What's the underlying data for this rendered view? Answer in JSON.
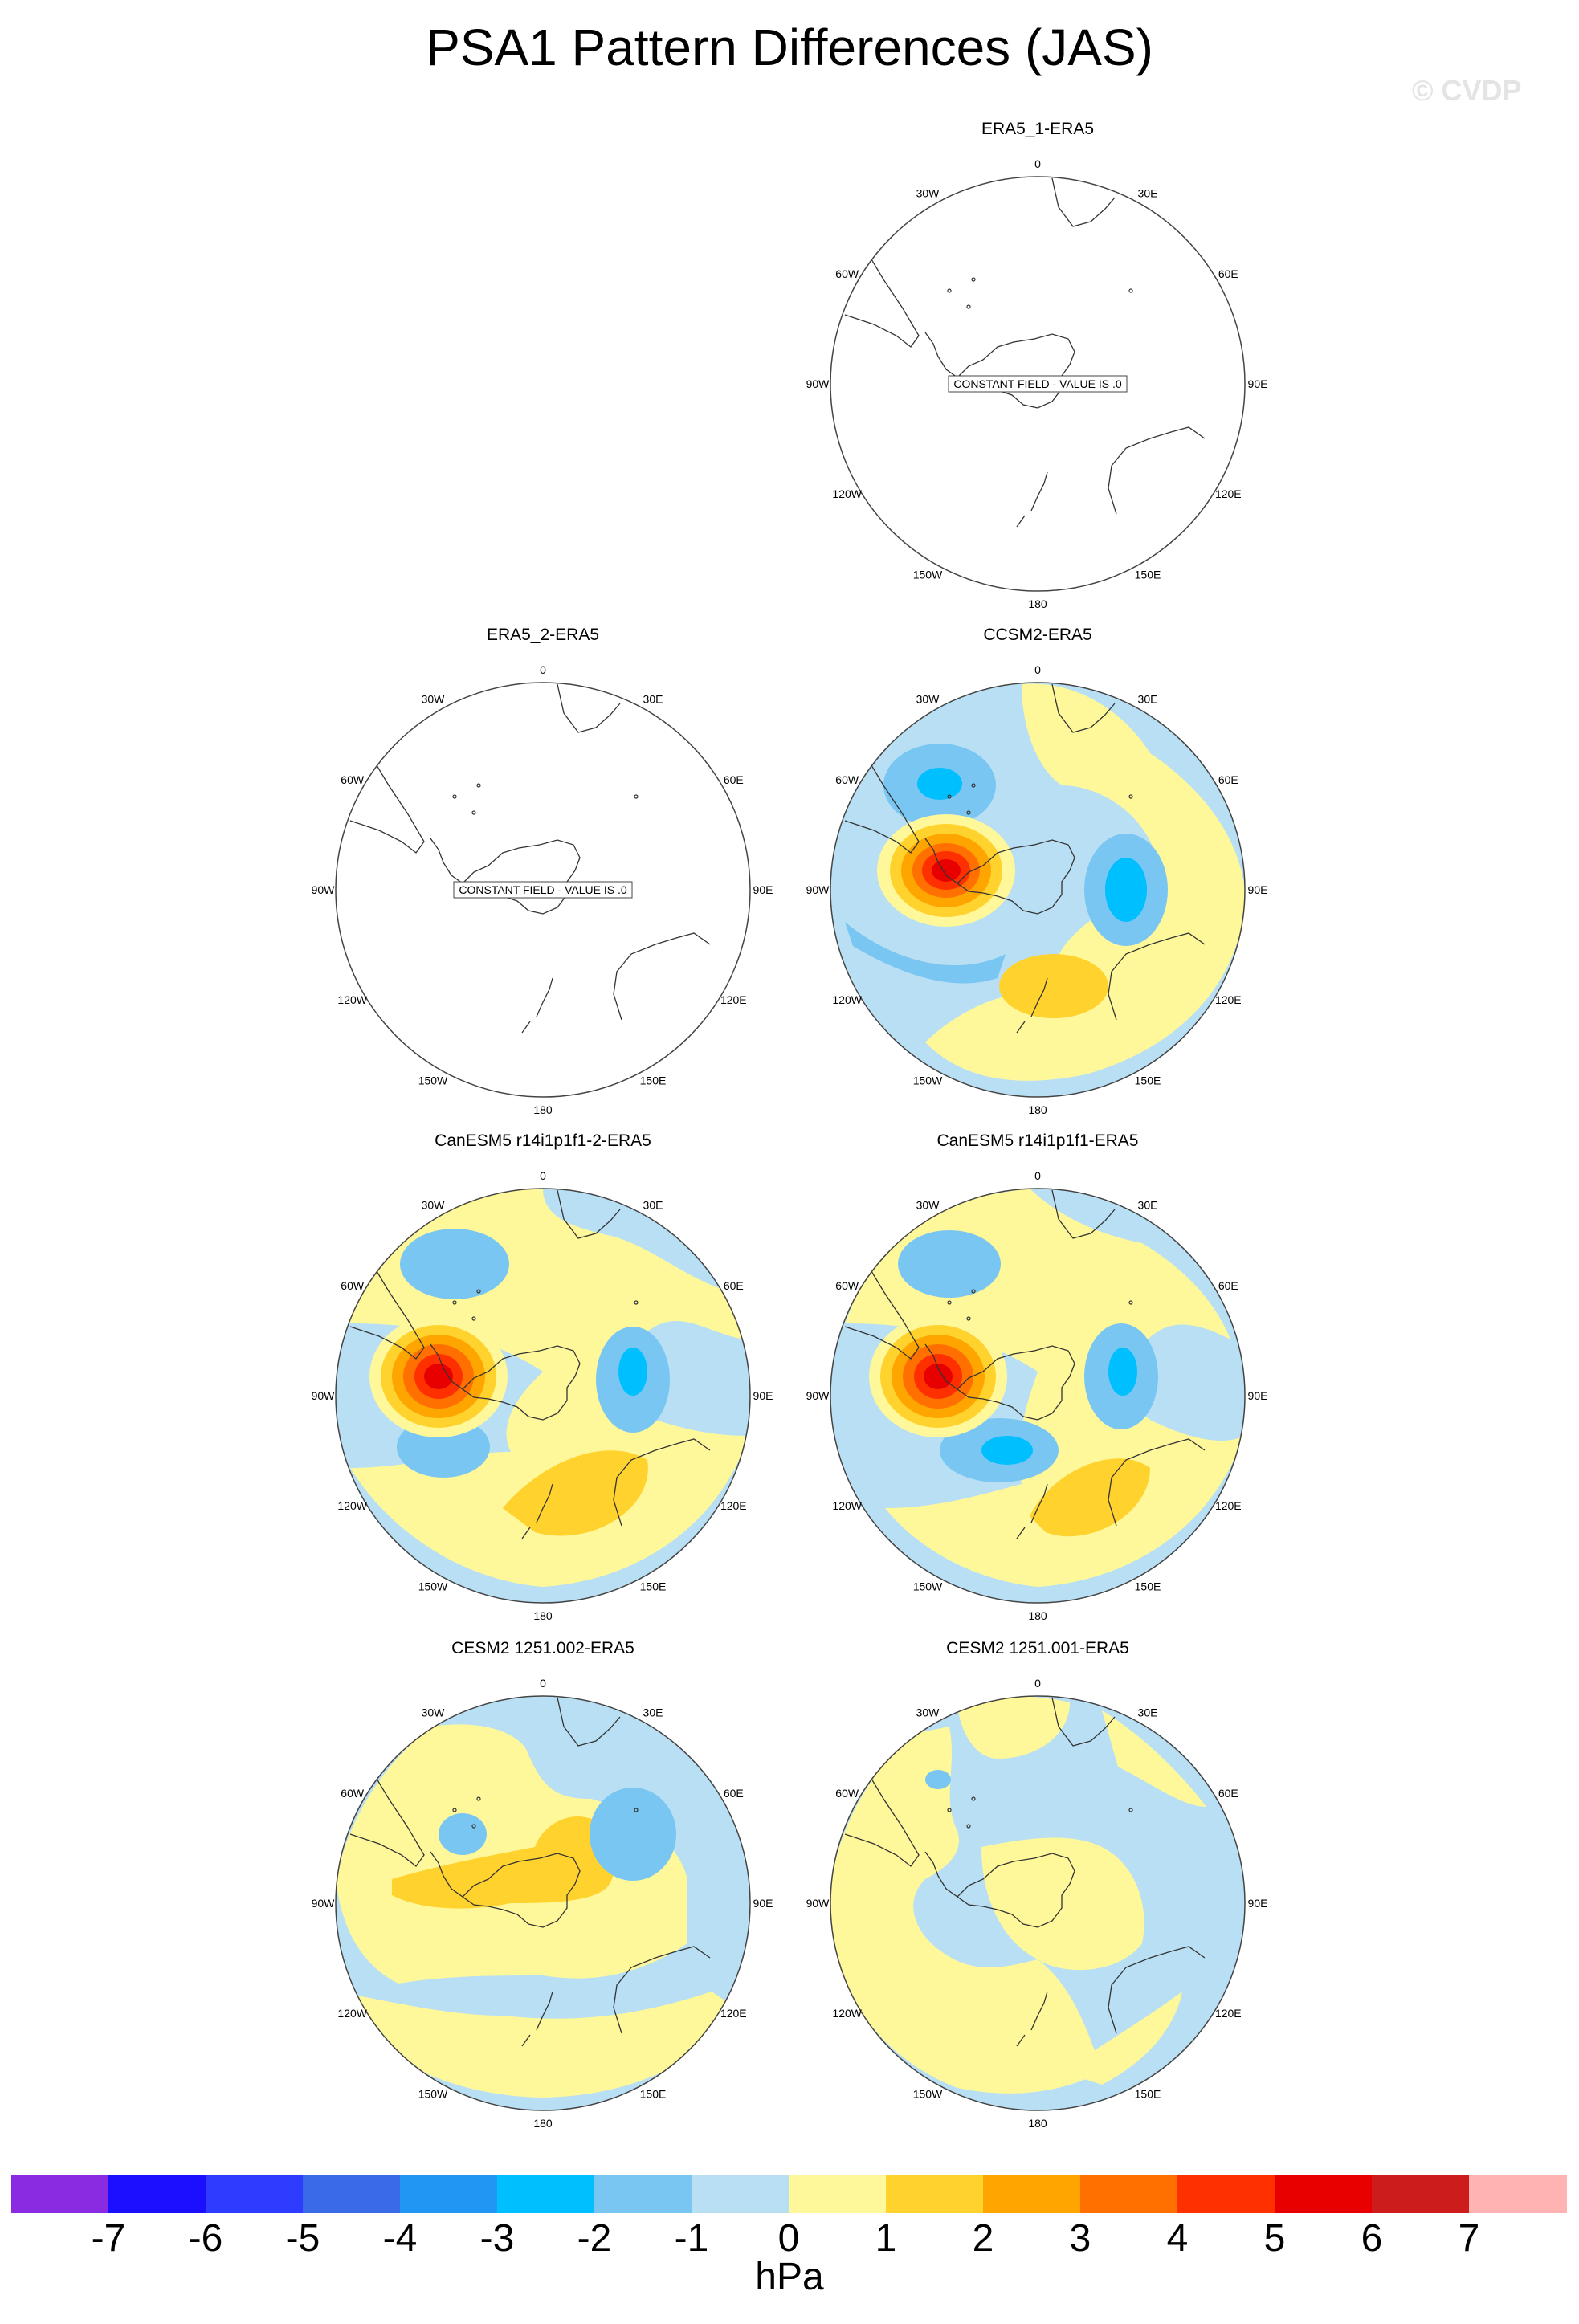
{
  "title": "PSA1 Pattern Differences (JAS)",
  "watermark": "© CVDP",
  "grid_labels": [
    "0",
    "30E",
    "60E",
    "90E",
    "120E",
    "150E",
    "180",
    "150W",
    "120W",
    "90W",
    "60W",
    "30W"
  ],
  "constant_field_text": "CONSTANT FIELD - VALUE IS .0",
  "panels": [
    {
      "title": "ERA5_1-ERA5",
      "constant": true
    },
    {
      "title": "ERA5_2-ERA5",
      "constant": true
    },
    {
      "title": "CCSM2-ERA5",
      "constant": false
    },
    {
      "title": "CanESM5 r14i1p1f1-2-ERA5",
      "constant": false
    },
    {
      "title": "CanESM5 r14i1p1f1-ERA5",
      "constant": false
    },
    {
      "title": "CESM2 1251.002-ERA5",
      "constant": false
    },
    {
      "title": "CESM2 1251.001-ERA5",
      "constant": false
    }
  ],
  "colorbar": {
    "labels": [
      "-7",
      "-6",
      "-5",
      "-4",
      "-3",
      "-2",
      "-1",
      "0",
      "1",
      "2",
      "3",
      "4",
      "5",
      "6",
      "7"
    ],
    "colors": [
      "#8a2be2",
      "#1a0fff",
      "#2d3cff",
      "#3a6ae8",
      "#2196f3",
      "#00bfff",
      "#79c6f2",
      "#b8dff3",
      "#fff89a",
      "#ffd22e",
      "#ffa500",
      "#ff7000",
      "#ff3000",
      "#e80000",
      "#cc1c1c",
      "#ffb3b3"
    ],
    "units": "hPa"
  }
}
